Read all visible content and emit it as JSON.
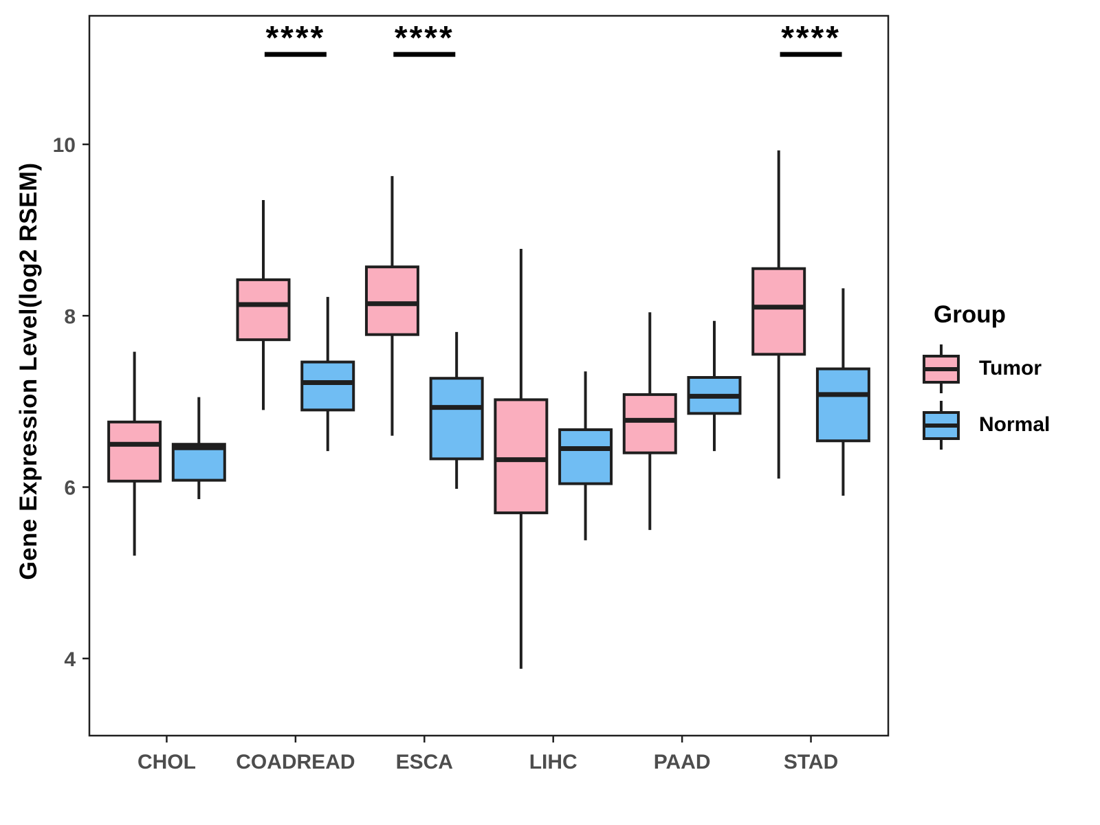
{
  "chart_data": {
    "type": "grouped_boxplot",
    "title": "",
    "xlabel": "",
    "ylabel": "Gene Expression Level(log2 RSEM)",
    "ylim": [
      3.1,
      11.5
    ],
    "yticks": [
      4,
      6,
      8,
      10
    ],
    "grid": false,
    "panel_border": true,
    "categories": [
      "CHOL",
      "COADREAD",
      "ESCA",
      "LIHC",
      "PAAD",
      "STAD"
    ],
    "legend": {
      "title": "Group",
      "position": "right",
      "entries": [
        {
          "label": "Tumor",
          "color": "#FAAEBE"
        },
        {
          "label": "Normal",
          "color": "#70BDF3"
        }
      ]
    },
    "colors": {
      "tumor_fill": "#FAAEBE",
      "normal_fill": "#70BDF3",
      "box_stroke": "#1F1F1F",
      "axis_text": "#4D4D4D",
      "axis_line": "#1F1F1F",
      "annotation": "#000000"
    },
    "series": [
      {
        "name": "Tumor",
        "color": "#FAAEBE",
        "boxes": [
          {
            "category": "CHOL",
            "min": 5.2,
            "q1": 6.07,
            "median": 6.5,
            "q3": 6.76,
            "max": 7.58
          },
          {
            "category": "COADREAD",
            "min": 6.9,
            "q1": 7.72,
            "median": 8.13,
            "q3": 8.42,
            "max": 9.35
          },
          {
            "category": "ESCA",
            "min": 6.6,
            "q1": 7.78,
            "median": 8.14,
            "q3": 8.57,
            "max": 9.63
          },
          {
            "category": "LIHC",
            "min": 3.88,
            "q1": 5.7,
            "median": 6.32,
            "q3": 7.02,
            "max": 8.78
          },
          {
            "category": "PAAD",
            "min": 5.5,
            "q1": 6.4,
            "median": 6.78,
            "q3": 7.08,
            "max": 8.04
          },
          {
            "category": "STAD",
            "min": 6.1,
            "q1": 7.55,
            "median": 8.1,
            "q3": 8.55,
            "max": 9.93
          }
        ]
      },
      {
        "name": "Normal",
        "color": "#70BDF3",
        "boxes": [
          {
            "category": "CHOL",
            "min": 5.86,
            "q1": 6.08,
            "median": 6.46,
            "q3": 6.5,
            "max": 7.05
          },
          {
            "category": "COADREAD",
            "min": 6.42,
            "q1": 6.9,
            "median": 7.22,
            "q3": 7.46,
            "max": 8.22
          },
          {
            "category": "ESCA",
            "min": 5.98,
            "q1": 6.33,
            "median": 6.93,
            "q3": 7.27,
            "max": 7.81
          },
          {
            "category": "LIHC",
            "min": 5.38,
            "q1": 6.04,
            "median": 6.45,
            "q3": 6.67,
            "max": 7.35
          },
          {
            "category": "PAAD",
            "min": 6.42,
            "q1": 6.86,
            "median": 7.06,
            "q3": 7.28,
            "max": 7.94
          },
          {
            "category": "STAD",
            "min": 5.9,
            "q1": 6.54,
            "median": 7.08,
            "q3": 7.38,
            "max": 8.32
          }
        ]
      }
    ],
    "annotations": [
      {
        "category": "COADREAD",
        "label": "****",
        "underline": true,
        "y": 11.05
      },
      {
        "category": "ESCA",
        "label": "****",
        "underline": true,
        "y": 11.05
      },
      {
        "category": "STAD",
        "label": "****",
        "underline": true,
        "y": 11.05
      }
    ]
  }
}
